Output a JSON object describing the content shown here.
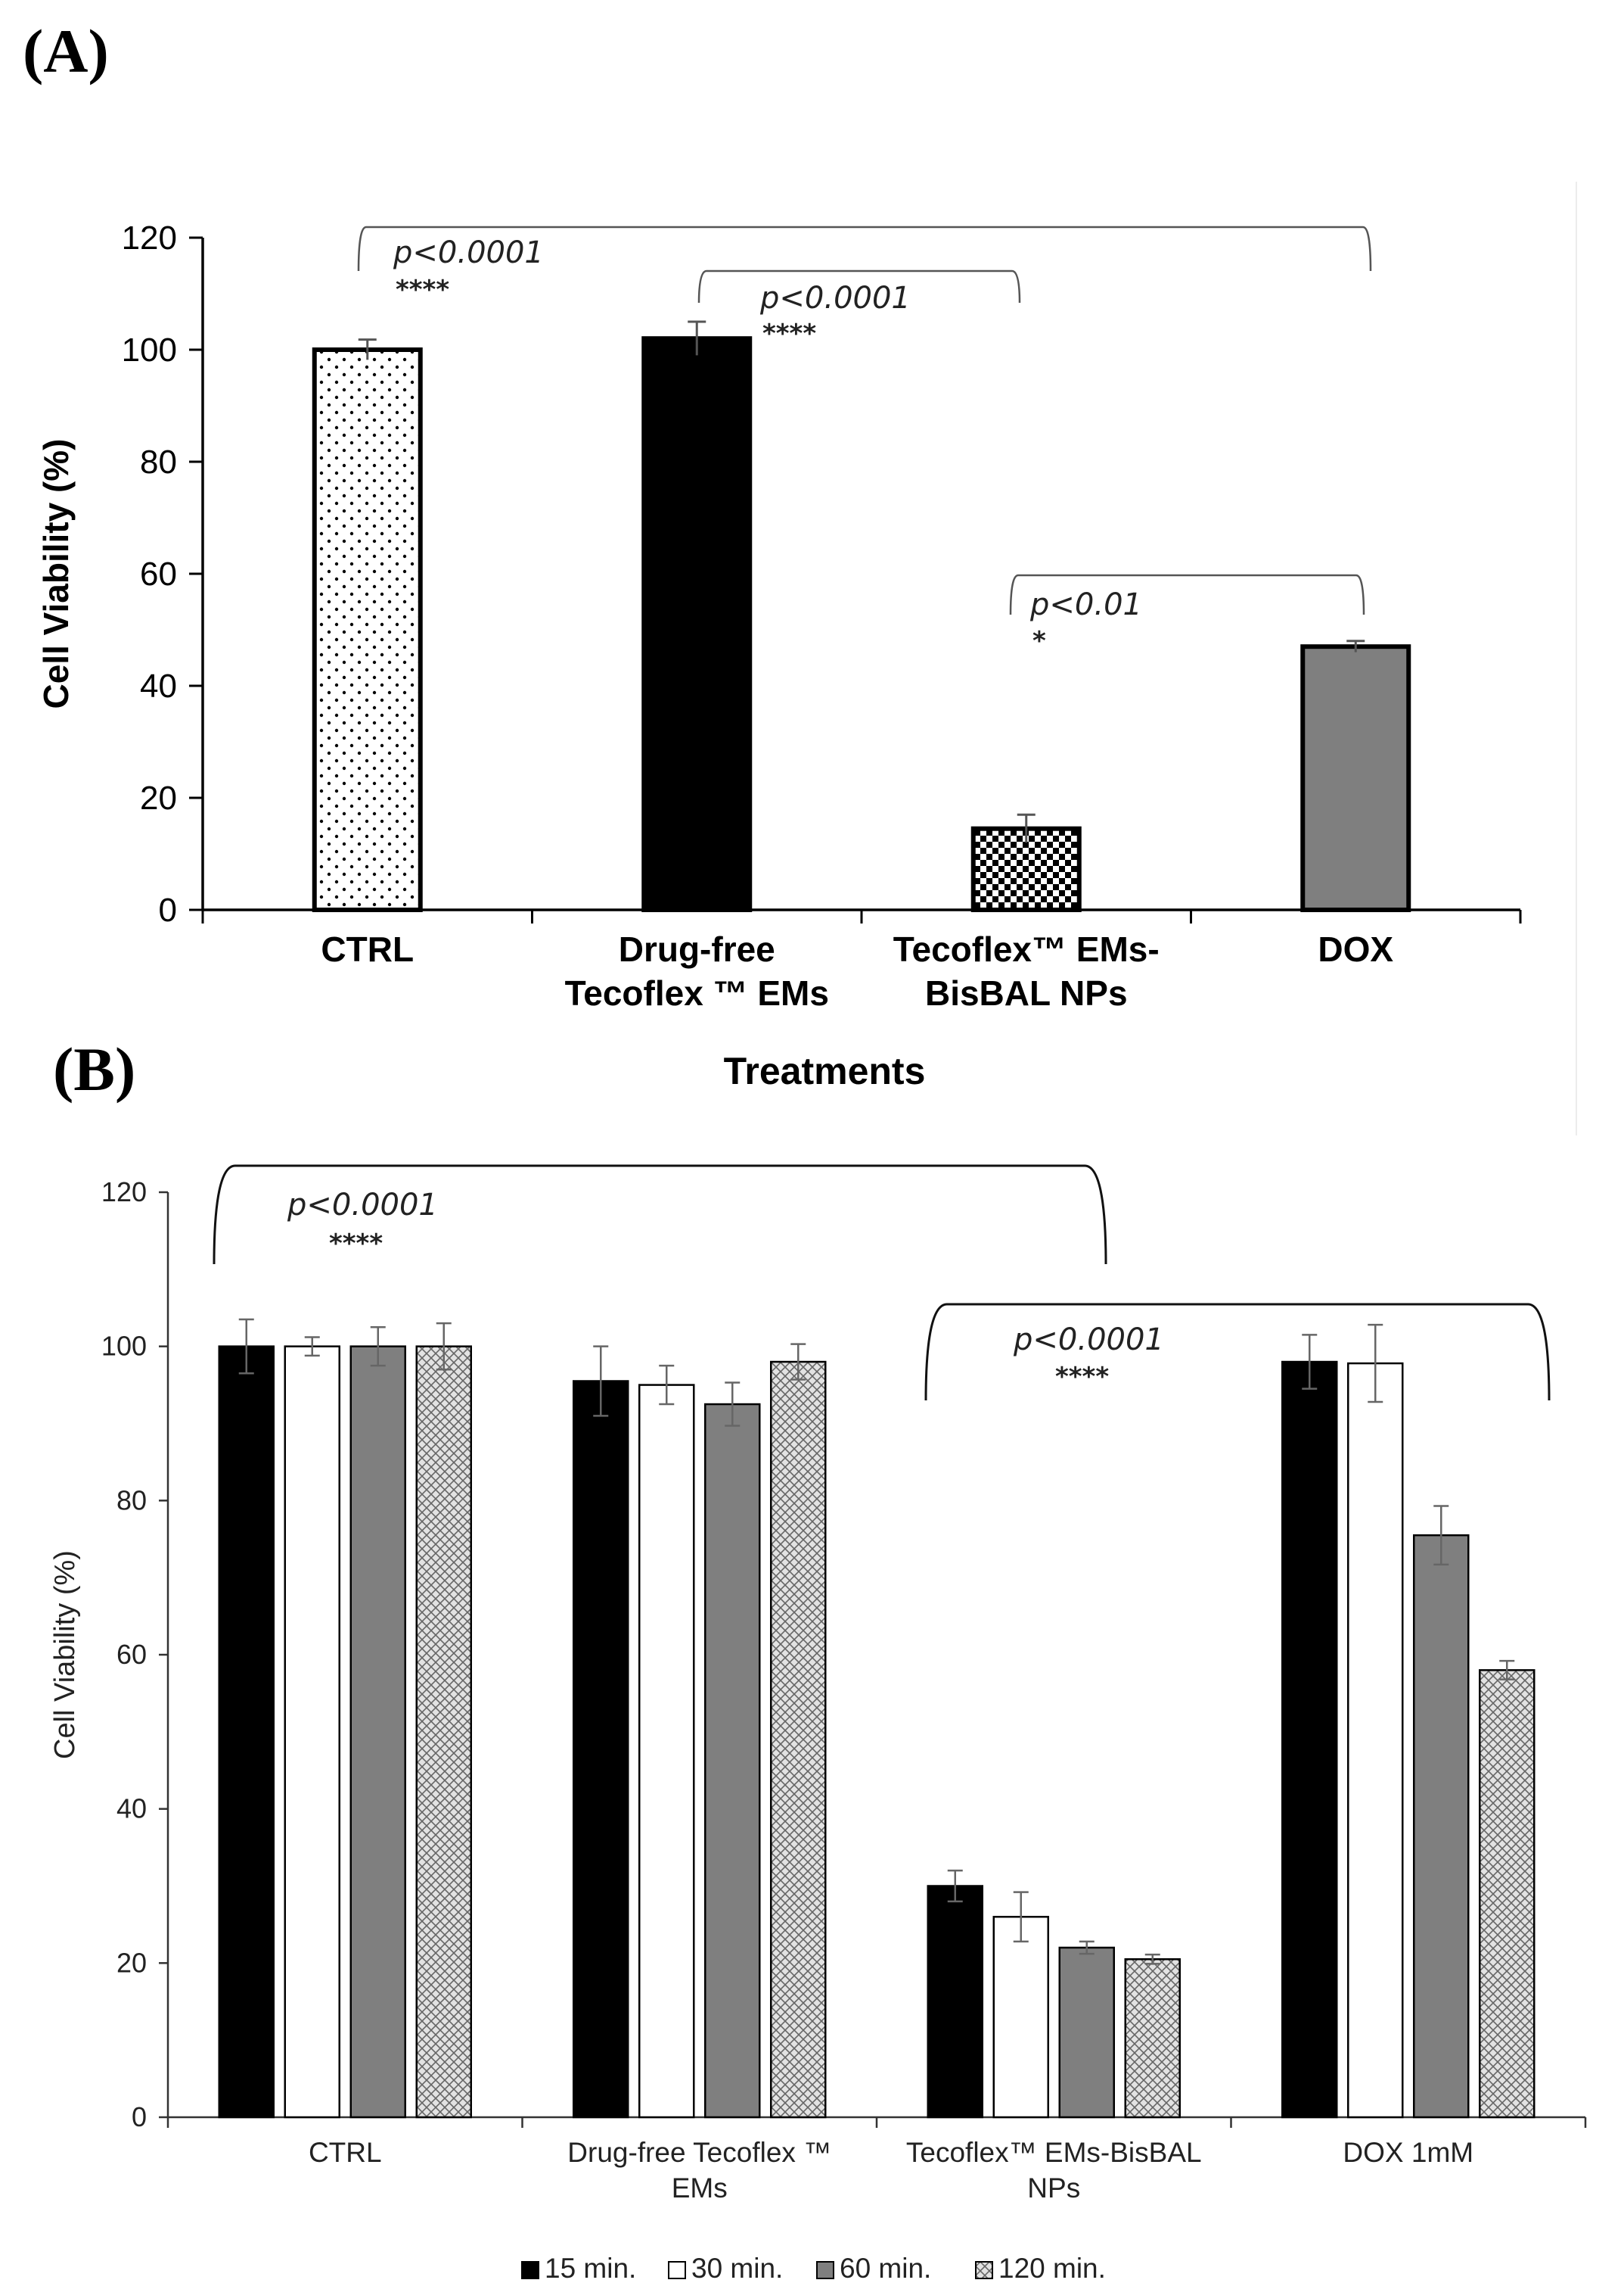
{
  "chart_data": [
    {
      "panel": "(A)",
      "type": "bar",
      "xlabel": "Treatments",
      "ylabel": "Cell Viability (%)",
      "ylim": [
        0,
        120
      ],
      "yticks": [
        0,
        20,
        40,
        60,
        80,
        100,
        120
      ],
      "categories": [
        [
          "CTRL"
        ],
        [
          "Drug-free",
          "Tecoflex ™ EMs"
        ],
        [
          "Tecoflex™ EMs-",
          "BisBAL NPs"
        ],
        [
          "DOX"
        ]
      ],
      "values": [
        100,
        102,
        14.5,
        47
      ],
      "errors": [
        1.8,
        3,
        2.5,
        1
      ],
      "fills": [
        "dots",
        "#000000",
        "checker",
        "#7f7f7f"
      ],
      "significance": [
        {
          "from": 0,
          "to": 3,
          "p": "p<0.0001",
          "stars": "****"
        },
        {
          "from": 1,
          "to": 2,
          "p": "p<0.0001",
          "stars": "****"
        },
        {
          "from": 2,
          "to": 3,
          "p": "p<0.01",
          "stars": "*"
        }
      ]
    },
    {
      "panel": "(B)",
      "type": "bar",
      "xlabel": "",
      "ylabel": "Cell Viability (%)",
      "ylim": [
        0,
        120
      ],
      "yticks": [
        0,
        20,
        40,
        60,
        80,
        100,
        120
      ],
      "categories": [
        [
          "CTRL"
        ],
        [
          "Drug-free Tecoflex ™",
          "EMs"
        ],
        [
          "Tecoflex™ EMs-BisBAL",
          "NPs"
        ],
        [
          "DOX 1mM"
        ]
      ],
      "series": [
        {
          "name": "15 min.",
          "fill": "#000000",
          "values": [
            100,
            95.5,
            30,
            98
          ],
          "errors": [
            3.5,
            4.5,
            2,
            3.5
          ]
        },
        {
          "name": "30 min.",
          "fill": "#ffffff",
          "values": [
            100,
            95,
            26,
            97.8
          ],
          "errors": [
            1.2,
            2.5,
            3.2,
            5
          ]
        },
        {
          "name": "60 min.",
          "fill": "#7f7f7f",
          "values": [
            100,
            92.5,
            22,
            75.5
          ],
          "errors": [
            2.5,
            2.8,
            0.8,
            3.8
          ]
        },
        {
          "name": "120 min.",
          "fill": "crosshatch",
          "values": [
            100,
            98,
            20.5,
            58
          ],
          "errors": [
            3,
            2.3,
            0.6,
            1.2
          ]
        }
      ],
      "legend_position": "bottom",
      "significance": [
        {
          "from": 0,
          "to": 2,
          "p": "p<0.0001",
          "stars": "****"
        },
        {
          "from": 2,
          "to": 3,
          "p": "p<0.0001",
          "stars": "****"
        }
      ]
    }
  ]
}
